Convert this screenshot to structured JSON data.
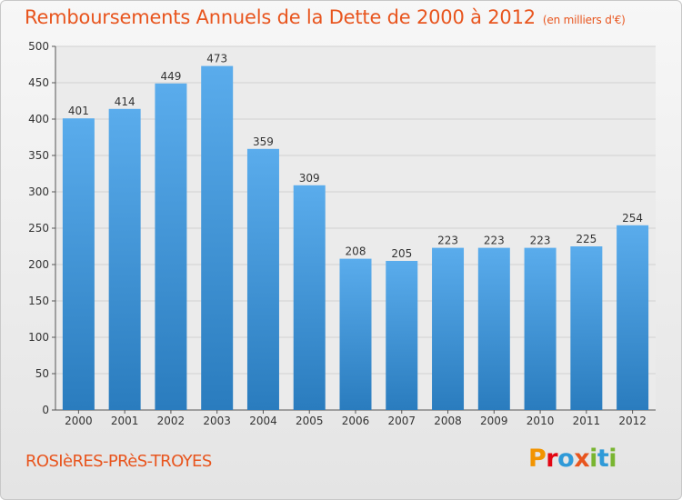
{
  "header": {
    "title": "Remboursements Annuels de la Dette de 2000 à 2012",
    "unit": "(en milliers d'€)"
  },
  "footer": {
    "commune": "ROSIèRES-PRèS-TROYES",
    "logo": "Proxiti"
  },
  "colors": {
    "bar_top": "#5aacec",
    "bar_bottom": "#2a7cbe",
    "accent": "#e8551e"
  },
  "chart_data": {
    "type": "bar",
    "title": "Remboursements Annuels de la Dette de 2000 à 2012",
    "xlabel": "",
    "ylabel": "",
    "categories": [
      "2000",
      "2001",
      "2002",
      "2003",
      "2004",
      "2005",
      "2006",
      "2007",
      "2008",
      "2009",
      "2010",
      "2011",
      "2012"
    ],
    "values": [
      401,
      414,
      449,
      473,
      359,
      309,
      208,
      205,
      223,
      223,
      223,
      225,
      254
    ],
    "ylim": [
      0,
      500
    ],
    "yticks": [
      0,
      50,
      100,
      150,
      200,
      250,
      300,
      350,
      400,
      450,
      500
    ],
    "grid": true
  }
}
